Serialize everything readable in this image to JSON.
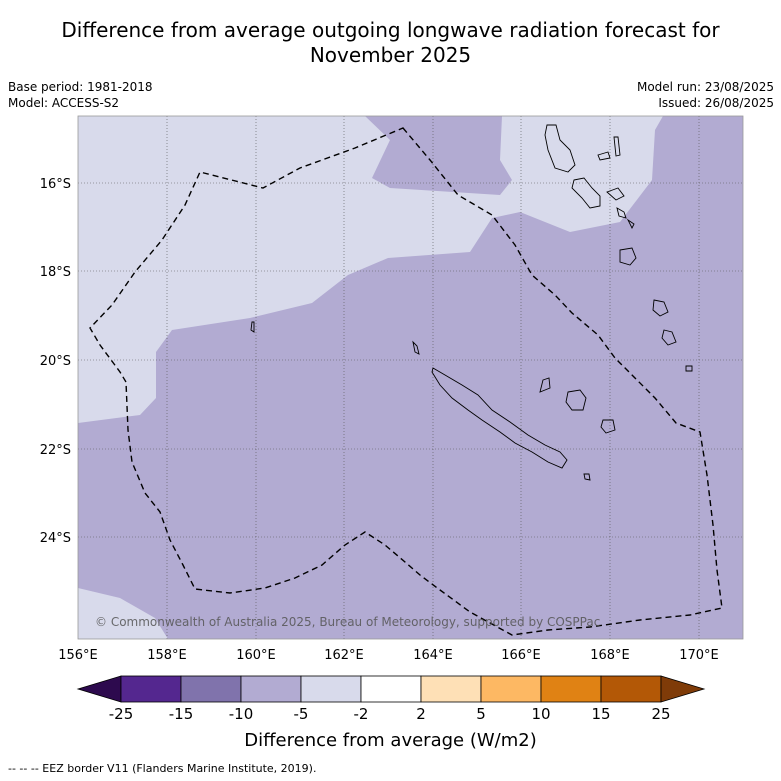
{
  "title": "Difference from average outgoing longwave radiation forecast for November 2025",
  "title_line1": "Difference from average outgoing longwave radiation forecast for",
  "title_line2": "November 2025",
  "meta_left": [
    "Base period: 1981-2018",
    "Model: ACCESS-S2"
  ],
  "meta_right": [
    "Model run: 23/08/2025",
    "Issued: 26/08/2025"
  ],
  "copyright": "© Commonwealth of Australia 2025, Bureau of Meteorology, supported by COSPPac",
  "lat_labels": [
    "16°S",
    "18°S",
    "20°S",
    "22°S",
    "24°S"
  ],
  "lon_labels": [
    "156°E",
    "158°E",
    "160°E",
    "162°E",
    "164°E",
    "166°E",
    "168°E",
    "170°E"
  ],
  "legend": {
    "title": "Difference from average (W/m2)",
    "ticks": [
      "-25",
      "-15",
      "-10",
      "-5",
      "-2",
      "2",
      "5",
      "10",
      "15",
      "25"
    ],
    "colors": [
      "#2d0a4e",
      "#54278f",
      "#8073ac",
      "#b2abd2",
      "#d8daeb",
      "#ffffff",
      "#fee0b6",
      "#fdb863",
      "#e08214",
      "#b35806",
      "#7f3b08"
    ]
  },
  "footer": "--  --  -- EEZ border V11 (Flanders Marine Institute, 2019).",
  "colors": {
    "light_category": "#d8daeb",
    "mid_category": "#b2abd2"
  }
}
